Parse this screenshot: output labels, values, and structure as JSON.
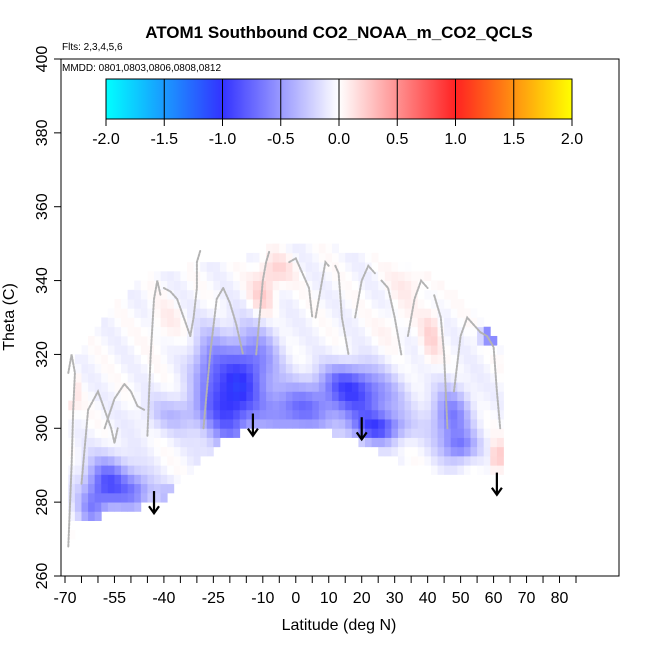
{
  "chart_data": {
    "type": "heatmap",
    "title": "ATOM1 Southbound CO2_NOAA_m_CO2_QCLS",
    "subtitle_flights": "Flts: 2,3,4,5,6",
    "subtitle_dates": "MMDD: 0801,0803,0806,0808,0812",
    "xlabel": "Latitude (deg N)",
    "ylabel": "Theta (C)",
    "xlim": [
      -70,
      85
    ],
    "ylim": [
      260,
      400
    ],
    "x_ticks": [
      -70,
      -55,
      -40,
      -25,
      -10,
      0,
      10,
      20,
      30,
      40,
      50,
      60,
      70,
      80
    ],
    "x_tick_labels": [
      "-70",
      "-55",
      "-40",
      "-25",
      "-10",
      "0",
      "10",
      "20",
      "30",
      "40",
      "50",
      "60",
      "70",
      "80"
    ],
    "x_minor_ticks": [
      -65,
      -60,
      -50,
      -45,
      -35,
      -30,
      -20,
      -15,
      -5,
      5,
      15,
      25,
      35,
      45,
      55,
      65,
      75,
      85
    ],
    "y_ticks": [
      260,
      280,
      300,
      320,
      340,
      360,
      380,
      400
    ],
    "y_tick_labels": [
      "260",
      "280",
      "300",
      "320",
      "340",
      "360",
      "380",
      "400"
    ],
    "colorbar": {
      "range": [
        -2.0,
        2.0
      ],
      "ticks": [
        -2.0,
        -1.5,
        -1.0,
        -0.5,
        0.0,
        0.5,
        1.0,
        1.5,
        2.0
      ],
      "tick_labels": [
        "-2.0",
        "-1.5",
        "-1.0",
        "-0.5",
        "0.0",
        "0.5",
        "1.0",
        "1.5",
        "2.0"
      ],
      "stops": [
        {
          "v": -2.0,
          "color": "#00ffff"
        },
        {
          "v": -1.0,
          "color": "#3333ff"
        },
        {
          "v": 0.0,
          "color": "#ffffff"
        },
        {
          "v": 1.0,
          "color": "#ff2222"
        },
        {
          "v": 2.0,
          "color": "#ffff00"
        }
      ]
    },
    "cell_size": {
      "dlat": 2,
      "dtheta": 2.5
    },
    "base_value": -0.03,
    "domain": {
      "bottom": [
        [
          -69,
          266
        ],
        [
          -66,
          276
        ],
        [
          -60,
          276
        ],
        [
          -55,
          278
        ],
        [
          -45,
          279
        ],
        [
          -40,
          281
        ],
        [
          -30,
          290
        ],
        [
          -20,
          298
        ],
        [
          -10,
          300
        ],
        [
          0,
          300
        ],
        [
          10,
          299
        ],
        [
          20,
          296
        ],
        [
          25,
          294
        ],
        [
          35,
          290
        ],
        [
          50,
          287
        ],
        [
          62,
          288
        ]
      ],
      "top": [
        [
          -69,
          302
        ],
        [
          -66,
          318
        ],
        [
          -62,
          325
        ],
        [
          -55,
          332
        ],
        [
          -45,
          340
        ],
        [
          -30,
          343
        ],
        [
          -20,
          344
        ],
        [
          -10,
          346
        ],
        [
          -5,
          350
        ],
        [
          5,
          350
        ],
        [
          15,
          347
        ],
        [
          25,
          345
        ],
        [
          35,
          343
        ],
        [
          45,
          338
        ],
        [
          55,
          330
        ],
        [
          62,
          322
        ]
      ]
    },
    "anomaly_blobs": [
      {
        "lat": -20,
        "theta": 308,
        "rlat": 8,
        "rtheta": 13,
        "value": -0.95
      },
      {
        "lat": -12,
        "theta": 318,
        "rlat": 7,
        "rtheta": 10,
        "value": -0.5
      },
      {
        "lat": -27,
        "theta": 318,
        "rlat": 5,
        "rtheta": 9,
        "value": -0.35
      },
      {
        "lat": -36,
        "theta": 304,
        "rlat": 10,
        "rtheta": 5,
        "value": -0.3
      },
      {
        "lat": -57,
        "theta": 285,
        "rlat": 7,
        "rtheta": 7,
        "value": -0.8
      },
      {
        "lat": -48,
        "theta": 283,
        "rlat": 5,
        "rtheta": 5,
        "value": -0.45
      },
      {
        "lat": -38,
        "theta": 282,
        "rlat": 5,
        "rtheta": 3,
        "value": -0.3
      },
      {
        "lat": -62,
        "theta": 278,
        "rlat": 4,
        "rtheta": 5,
        "value": -0.4
      },
      {
        "lat": 0,
        "theta": 305,
        "rlat": 10,
        "rtheta": 7,
        "value": -0.65
      },
      {
        "lat": 20,
        "theta": 308,
        "rlat": 11,
        "rtheta": 7,
        "value": -0.7
      },
      {
        "lat": 25,
        "theta": 300,
        "rlat": 8,
        "rtheta": 4,
        "value": -0.75
      },
      {
        "lat": 15,
        "theta": 313,
        "rlat": 8,
        "rtheta": 5,
        "value": -0.45
      },
      {
        "lat": 47,
        "theta": 303,
        "rlat": 6,
        "rtheta": 8,
        "value": -0.6
      },
      {
        "lat": 50,
        "theta": 295,
        "rlat": 5,
        "rtheta": 4,
        "value": -0.5
      },
      {
        "lat": 59,
        "theta": 325,
        "rlat": 3,
        "rtheta": 2,
        "value": -0.9
      },
      {
        "lat": -5,
        "theta": 290,
        "rlat": 6,
        "rtheta": 6,
        "value": -0.25
      },
      {
        "lat": -10,
        "theta": 336,
        "rlat": 4,
        "rtheta": 6,
        "value": 0.25
      },
      {
        "lat": -6,
        "theta": 343,
        "rlat": 5,
        "rtheta": 4,
        "value": 0.2
      },
      {
        "lat": 35,
        "theta": 340,
        "rlat": 6,
        "rtheta": 6,
        "value": 0.12
      },
      {
        "lat": 41,
        "theta": 325,
        "rlat": 3,
        "rtheta": 8,
        "value": 0.2
      },
      {
        "lat": 61,
        "theta": 292,
        "rlat": 2,
        "rtheta": 4,
        "value": 0.35
      },
      {
        "lat": -68,
        "theta": 310,
        "rlat": 2,
        "rtheta": 7,
        "value": 0.2
      },
      {
        "lat": -40,
        "theta": 328,
        "rlat": 5,
        "rtheta": 6,
        "value": 0.1
      },
      {
        "lat": 30,
        "theta": 328,
        "rlat": 5,
        "rtheta": 5,
        "value": 0.08
      }
    ],
    "flight_tracks": [
      {
        "lat": [
          -69,
          -68,
          -67.5,
          -67,
          -68,
          -69
        ],
        "theta": [
          268,
          290,
          305,
          315,
          320,
          315
        ]
      },
      {
        "lat": [
          -65,
          -63,
          -60,
          -58,
          -56,
          -55,
          -54
        ],
        "theta": [
          285,
          305,
          310,
          305,
          300,
          296,
          300
        ]
      },
      {
        "lat": [
          -58,
          -55,
          -52,
          -50,
          -48,
          -46
        ],
        "theta": [
          300,
          308,
          312,
          310,
          306,
          305
        ]
      },
      {
        "lat": [
          -45,
          -44,
          -43,
          -42,
          -41
        ],
        "theta": [
          298,
          320,
          335,
          340,
          336
        ]
      },
      {
        "lat": [
          -40,
          -38,
          -36,
          -34,
          -32
        ],
        "theta": [
          338,
          337,
          335,
          330,
          325
        ]
      },
      {
        "lat": [
          -32,
          -31,
          -30,
          -30,
          -29
        ],
        "theta": [
          325,
          330,
          338,
          345,
          348
        ]
      },
      {
        "lat": [
          -28,
          -26,
          -24,
          -22
        ],
        "theta": [
          300,
          320,
          335,
          338
        ]
      },
      {
        "lat": [
          -22,
          -20,
          -18,
          -16
        ],
        "theta": [
          338,
          334,
          328,
          320
        ]
      },
      {
        "lat": [
          -12,
          -11,
          -10,
          -9,
          -8
        ],
        "theta": [
          320,
          330,
          340,
          345,
          348
        ]
      },
      {
        "lat": [
          -2,
          0,
          2,
          4,
          5
        ],
        "theta": [
          345,
          346,
          342,
          338,
          330
        ]
      },
      {
        "lat": [
          6,
          8,
          9,
          10
        ],
        "theta": [
          330,
          340,
          345,
          344
        ]
      },
      {
        "lat": [
          12,
          13,
          14,
          16
        ],
        "theta": [
          344,
          342,
          330,
          320
        ]
      },
      {
        "lat": [
          18,
          20,
          22,
          24
        ],
        "theta": [
          330,
          340,
          344,
          342
        ]
      },
      {
        "lat": [
          26,
          28,
          30,
          32
        ],
        "theta": [
          340,
          338,
          330,
          320
        ]
      },
      {
        "lat": [
          34,
          36,
          38,
          40
        ],
        "theta": [
          325,
          335,
          340,
          338
        ]
      },
      {
        "lat": [
          42,
          44,
          45,
          46
        ],
        "theta": [
          336,
          330,
          320,
          300
        ]
      },
      {
        "lat": [
          48,
          50,
          52,
          54,
          56
        ],
        "theta": [
          310,
          325,
          330,
          328,
          326
        ]
      },
      {
        "lat": [
          56,
          58,
          60,
          61,
          62
        ],
        "theta": [
          326,
          325,
          322,
          310,
          300
        ]
      }
    ],
    "arrows": [
      {
        "lat": -43,
        "theta_from": 283,
        "theta_to": 277
      },
      {
        "lat": -13,
        "theta_from": 304,
        "theta_to": 298
      },
      {
        "lat": 20,
        "theta_from": 303,
        "theta_to": 297
      },
      {
        "lat": 61,
        "theta_from": 288,
        "theta_to": 282
      }
    ]
  }
}
